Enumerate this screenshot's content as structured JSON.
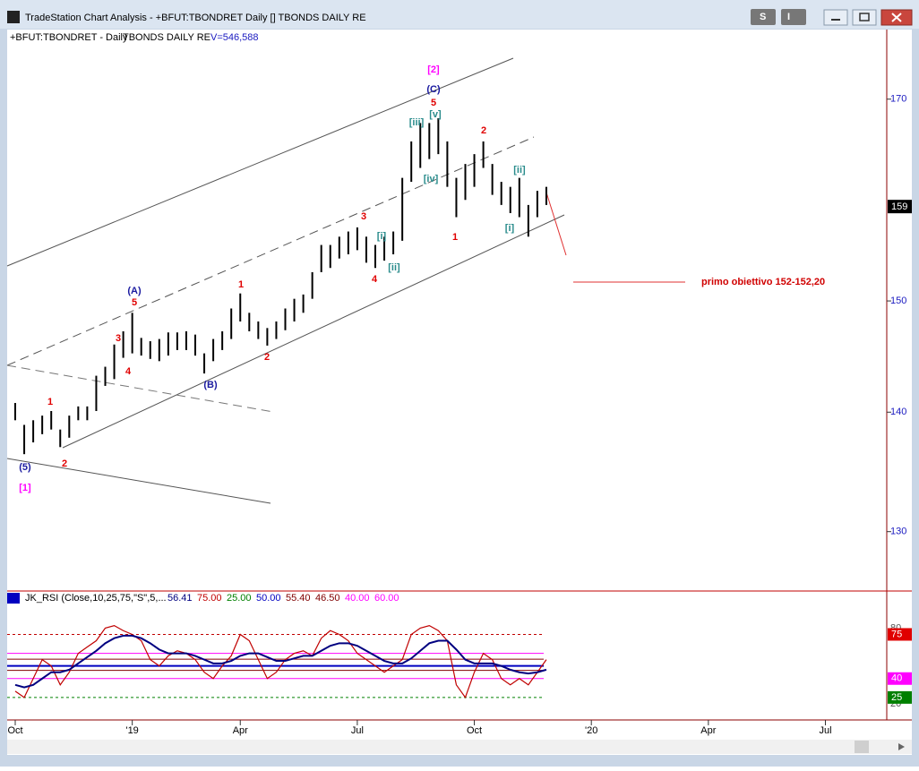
{
  "window": {
    "title": "TradeStation Chart Analysis - +BFUT:TBONDRET Daily [] TBONDS DAILY RE",
    "buttons": [
      "S",
      "I"
    ]
  },
  "chart_data": [
    {
      "type": "hilo",
      "symbol": "+BFUT:TBONDRET - Daily",
      "description": "TBONDS DAILY RE",
      "volume": "V=546,588",
      "color": "#000000",
      "categories": [
        "Oct",
        null,
        null,
        null,
        null,
        null,
        null,
        null,
        null,
        null,
        null,
        null,
        null,
        "'19",
        null,
        null,
        null,
        null,
        null,
        null,
        null,
        null,
        null,
        null,
        null,
        "Apr",
        null,
        null,
        null,
        null,
        null,
        null,
        null,
        null,
        null,
        null,
        null,
        null,
        "Jul",
        null,
        null,
        null,
        null,
        null,
        null,
        null,
        null,
        null,
        null,
        null,
        null,
        "Oct",
        null,
        null,
        null,
        null,
        null,
        null,
        null,
        null,
        null,
        null,
        null,
        null,
        "'20",
        null,
        null,
        null,
        null,
        null,
        null,
        null,
        null,
        null,
        null,
        null,
        null,
        "Apr",
        null,
        null,
        null,
        null,
        null,
        null,
        null,
        null,
        null,
        null,
        null,
        null,
        "Jul",
        null,
        null,
        null,
        null,
        null,
        null
      ],
      "high": [
        140.8,
        138.9,
        139.3,
        139.7,
        140.1,
        138.5,
        139.7,
        140.5,
        140.5,
        143.2,
        144.0,
        146.0,
        147.2,
        148.9,
        146.6,
        146.3,
        146.5,
        147.1,
        147.1,
        147.2,
        146.9,
        145.2,
        146.5,
        147.2,
        149.3,
        150.7,
        148.9,
        148.1,
        147.5,
        148.1,
        149.3,
        150.2,
        150.6,
        152.7,
        155.3,
        155.3,
        156.1,
        156.6,
        157.0,
        156.1,
        155.3,
        156.1,
        156.6,
        161.9,
        165.6,
        167.5,
        167.5,
        168.0,
        165.6,
        161.9,
        163.3,
        164.3,
        165.6,
        163.3,
        161.5,
        161.0,
        161.9,
        159.2,
        160.6,
        161.0,
        null,
        null,
        null,
        null,
        null,
        null,
        null,
        null,
        null,
        null,
        null,
        null,
        null,
        null,
        null,
        null,
        null,
        null,
        null,
        null,
        null,
        null,
        null,
        null,
        null,
        null,
        null,
        null,
        null,
        null,
        null,
        null,
        null,
        null,
        null,
        null,
        null
      ],
      "low": [
        139.3,
        136.4,
        137.4,
        138.1,
        138.5,
        137.0,
        137.8,
        139.3,
        139.3,
        140.1,
        142.3,
        142.9,
        144.8,
        145.2,
        145.0,
        144.7,
        144.5,
        145.0,
        145.5,
        145.5,
        145.0,
        143.4,
        144.5,
        145.5,
        146.5,
        148.1,
        147.2,
        146.5,
        145.9,
        146.5,
        147.3,
        148.1,
        148.9,
        150.2,
        152.7,
        153.1,
        154.0,
        154.4,
        154.8,
        153.6,
        153.1,
        153.8,
        154.4,
        155.7,
        161.5,
        162.9,
        163.8,
        164.3,
        161.0,
        158.0,
        159.7,
        161.0,
        162.9,
        160.2,
        159.2,
        158.4,
        158.0,
        156.1,
        158.0,
        159.2,
        null,
        null,
        null,
        null,
        null,
        null,
        null,
        null,
        null,
        null,
        null,
        null,
        null,
        null,
        null,
        null,
        null,
        null,
        null,
        null,
        null,
        null,
        null,
        null,
        null,
        null,
        null,
        null,
        null,
        null,
        null,
        null,
        null,
        null,
        null,
        null,
        null
      ],
      "ylim": [
        125.3,
        177.5
      ],
      "log_scale": true,
      "yticks": [
        130,
        140,
        150,
        170
      ],
      "last_price": 159,
      "target_label": "primo obiettivo 152-152,20",
      "annotations": [
        {
          "text": "[2]",
          "color": "#ff00ff"
        },
        {
          "text": "(C)",
          "color": "#1a1aa0"
        },
        {
          "text": "5",
          "color": "#e00000"
        },
        {
          "text": "[iii]",
          "color": "#2a8c8c"
        },
        {
          "text": "[v]",
          "color": "#2a8c8c"
        },
        {
          "text": "[iv]",
          "color": "#2a8c8c"
        },
        {
          "text": "2",
          "color": "#e00000"
        },
        {
          "text": "[ii]",
          "color": "#2a8c8c"
        },
        {
          "text": "1",
          "color": "#e00000"
        },
        {
          "text": "[i]",
          "color": "#2a8c8c"
        },
        {
          "text": "3",
          "color": "#e00000"
        },
        {
          "text": "[i]",
          "color": "#2a8c8c"
        },
        {
          "text": "[ii]",
          "color": "#2a8c8c"
        },
        {
          "text": "4",
          "color": "#e00000"
        },
        {
          "text": "1",
          "color": "#e00000"
        },
        {
          "text": "2",
          "color": "#e00000"
        },
        {
          "text": "(A)",
          "color": "#1a1aa0"
        },
        {
          "text": "5",
          "color": "#e00000"
        },
        {
          "text": "3",
          "color": "#e00000"
        },
        {
          "text": "4",
          "color": "#e00000"
        },
        {
          "text": "(B)",
          "color": "#1a1aa0"
        },
        {
          "text": "1",
          "color": "#e00000"
        },
        {
          "text": "2",
          "color": "#e00000"
        },
        {
          "text": "(5)",
          "color": "#1a1aa0"
        },
        {
          "text": "[1]",
          "color": "#ff00ff"
        }
      ]
    },
    {
      "type": "line",
      "title": "JK_RSI (Close,10,25,75,\"S\",5,...",
      "last_value": 56.41,
      "ylim": [
        10,
        108
      ],
      "yticks": [
        20,
        80
      ],
      "series": [
        {
          "color": "#c00000",
          "values": [
            30,
            25,
            40,
            55,
            50,
            35,
            45,
            60,
            65,
            70,
            80,
            82,
            78,
            75,
            70,
            55,
            50,
            58,
            62,
            60,
            55,
            45,
            40,
            50,
            58,
            75,
            70,
            55,
            40,
            45,
            55,
            60,
            62,
            58,
            72,
            78,
            75,
            70,
            60,
            55,
            50,
            45,
            50,
            55,
            75,
            80,
            82,
            78,
            70,
            35,
            25,
            45,
            60,
            55,
            40,
            35,
            40,
            35,
            45,
            55,
            null,
            null,
            null,
            null,
            null,
            null,
            null,
            null,
            null,
            null,
            null,
            null,
            null,
            null,
            null,
            null,
            null,
            null,
            null,
            null,
            null,
            null,
            null,
            null,
            null,
            null,
            null,
            null,
            null,
            null,
            null,
            null,
            null,
            null,
            null,
            null,
            null
          ]
        },
        {
          "color": "#000080",
          "values": [
            35,
            33,
            35,
            40,
            45,
            45,
            47,
            52,
            57,
            62,
            68,
            72,
            74,
            74,
            72,
            68,
            63,
            60,
            60,
            60,
            58,
            55,
            52,
            52,
            54,
            58,
            60,
            60,
            57,
            54,
            54,
            56,
            58,
            58,
            62,
            66,
            68,
            68,
            66,
            62,
            58,
            54,
            52,
            52,
            56,
            62,
            68,
            70,
            70,
            63,
            55,
            52,
            52,
            52,
            50,
            47,
            45,
            44,
            45,
            47,
            null,
            null,
            null,
            null,
            null,
            null,
            null,
            null,
            null,
            null,
            null,
            null,
            null,
            null,
            null,
            null,
            null,
            null,
            null,
            null,
            null,
            null,
            null,
            null,
            null,
            null,
            null,
            null,
            null,
            null,
            null,
            null,
            null,
            null,
            null,
            null,
            null
          ]
        }
      ],
      "levels": [
        {
          "value": 75,
          "label": "75.00",
          "color": "#c00000"
        },
        {
          "value": 25,
          "label": "25.00",
          "color": "#008000"
        },
        {
          "value": 50,
          "label": "50.00",
          "color": "#0000c0"
        },
        {
          "value": 55.4,
          "label": "55.40",
          "color": "#800000"
        },
        {
          "value": 46.5,
          "label": "46.50",
          "color": "#800000"
        },
        {
          "value": 40,
          "label": "40.00",
          "color": "#ff00ff"
        },
        {
          "value": 60,
          "label": "60.00",
          "color": "#ff00ff"
        }
      ],
      "badges": [
        {
          "value": 75,
          "label": "75",
          "color": "#e00000"
        },
        {
          "value": 40,
          "label": "40",
          "color": "#ff00ff"
        },
        {
          "value": 25,
          "label": "25",
          "color": "#008000"
        }
      ]
    }
  ]
}
